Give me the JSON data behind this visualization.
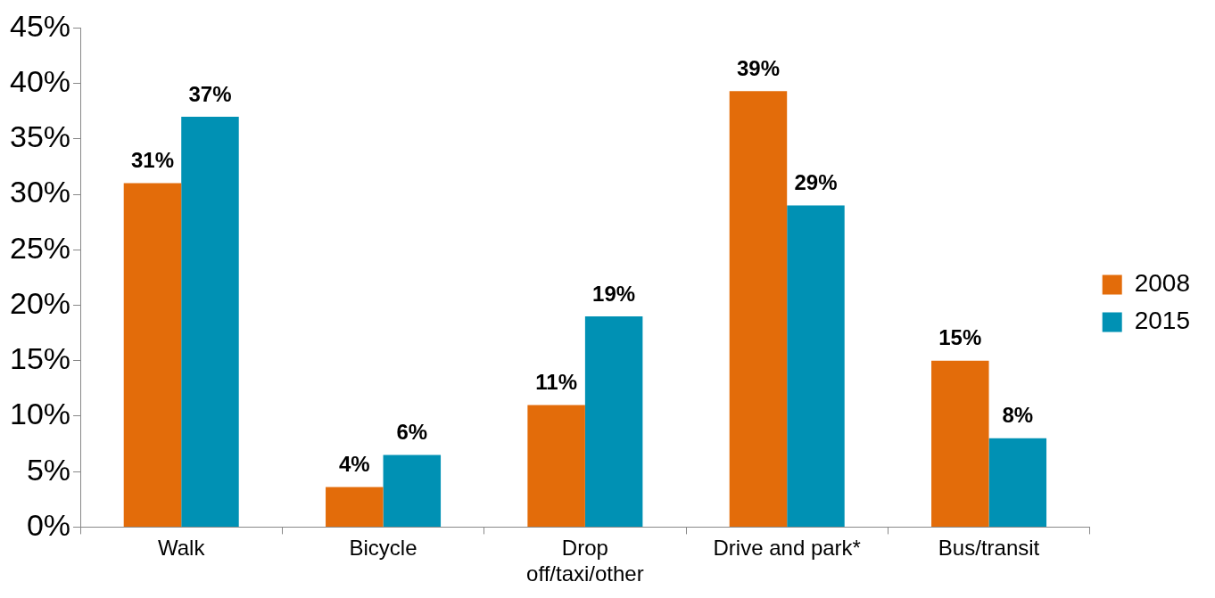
{
  "chart_data": {
    "type": "bar",
    "categories": [
      "Walk",
      "Bicycle",
      "Drop off/taxi/other",
      "Drive and park*",
      "Bus/transit"
    ],
    "series": [
      {
        "name": "2008",
        "color": "#e36c0a",
        "values": [
          31,
          3.6,
          11,
          39.3,
          15
        ],
        "value_labels": [
          "31%",
          "4%",
          "11%",
          "39%",
          "15%"
        ]
      },
      {
        "name": "2015",
        "color": "#0091b4",
        "values": [
          37,
          6.5,
          19,
          29,
          8
        ],
        "value_labels": [
          "37%",
          "6%",
          "19%",
          "29%",
          "8%"
        ]
      }
    ],
    "ylim": [
      0,
      45
    ],
    "yticks": [
      {
        "value": 0,
        "label": "0%"
      },
      {
        "value": 5,
        "label": "5%"
      },
      {
        "value": 10,
        "label": "10%"
      },
      {
        "value": 15,
        "label": "15%"
      },
      {
        "value": 20,
        "label": "20%"
      },
      {
        "value": 25,
        "label": "25%"
      },
      {
        "value": 30,
        "label": "30%"
      },
      {
        "value": 35,
        "label": "35%"
      },
      {
        "value": 40,
        "label": "40%"
      },
      {
        "value": 45,
        "label": "45%"
      }
    ],
    "grid": false,
    "legend": "right"
  }
}
